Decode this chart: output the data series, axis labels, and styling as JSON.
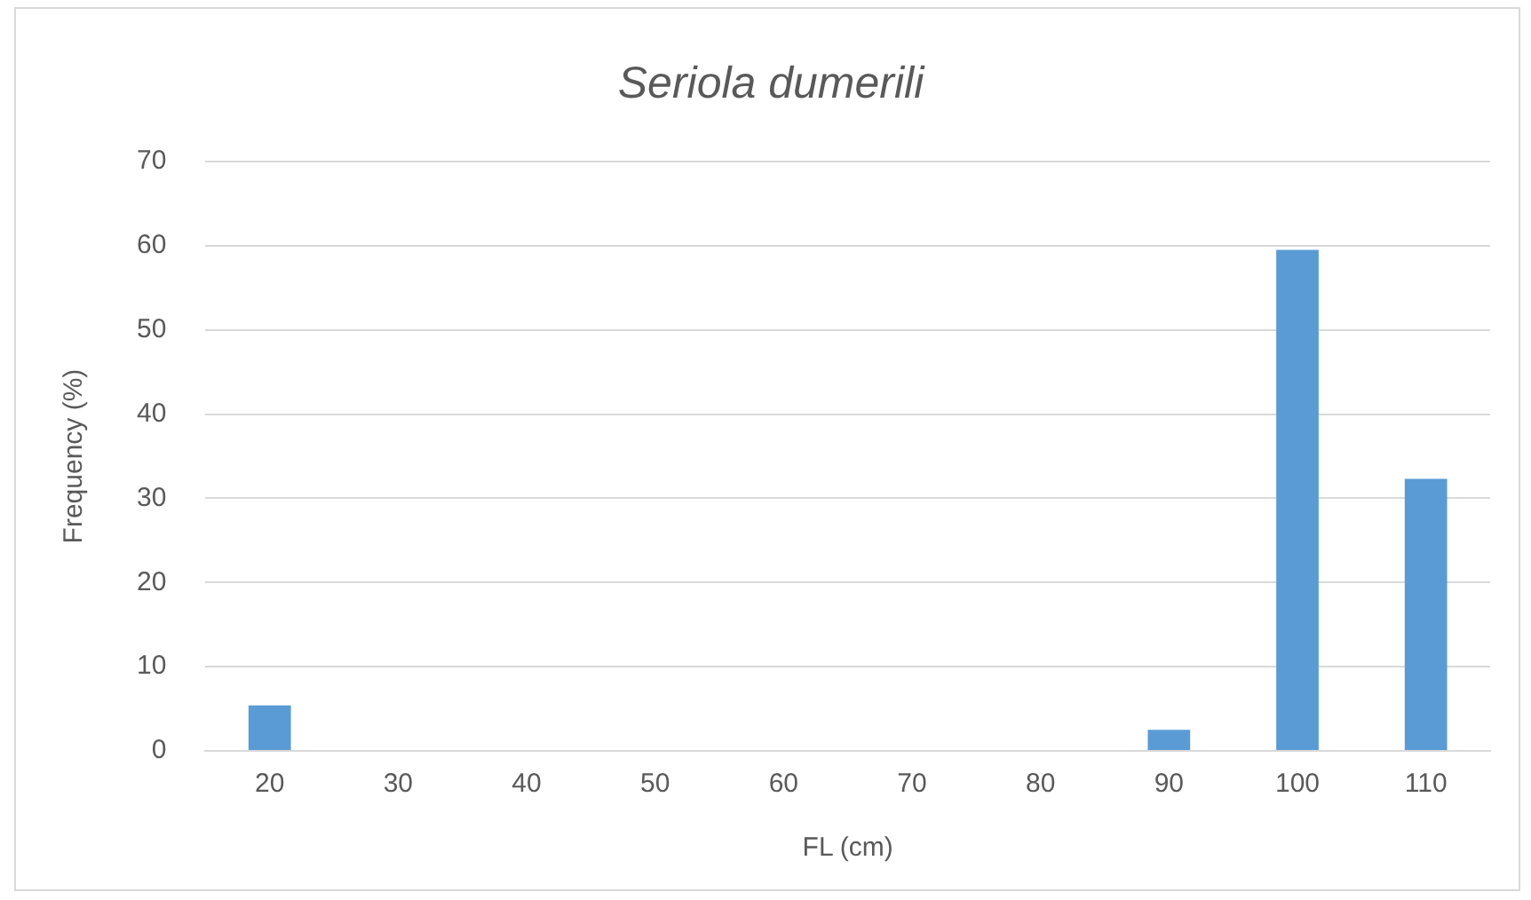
{
  "chart_data": {
    "type": "bar",
    "title": "Seriola dumerili",
    "xlabel": "FL (cm)",
    "ylabel": "Frequency (%)",
    "categories": [
      "20",
      "30",
      "40",
      "50",
      "60",
      "70",
      "80",
      "90",
      "100",
      "110"
    ],
    "values": [
      5.4,
      0,
      0,
      0,
      0,
      0,
      0,
      2.5,
      59.5,
      32.3
    ],
    "color": "#5b9bd5",
    "ylim": [
      0,
      70
    ],
    "yticks": [
      0,
      10,
      20,
      30,
      40,
      50,
      60,
      70
    ],
    "grid": "y",
    "legend": false
  }
}
